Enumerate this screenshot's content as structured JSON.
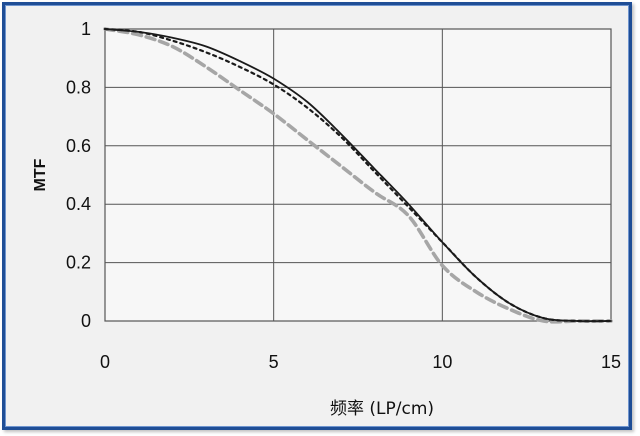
{
  "chart_data": {
    "type": "line",
    "title": "",
    "xlabel": "频率 (LP/cm)",
    "ylabel": "MTF",
    "xlim": [
      0,
      15
    ],
    "ylim": [
      0,
      1
    ],
    "x_ticks": [
      "0",
      "5",
      "10",
      "15"
    ],
    "y_ticks": [
      "0",
      "0.2",
      "0.4",
      "0.6",
      "0.8",
      "1"
    ],
    "grid": true,
    "legend": "none",
    "series": [
      {
        "style": "solid",
        "color": "#1a1a1a",
        "x": [
          0,
          1,
          2,
          3,
          4,
          5,
          6,
          7,
          8,
          9,
          10,
          11,
          12,
          13,
          14,
          15
        ],
        "y": [
          1.0,
          0.99,
          0.97,
          0.94,
          0.89,
          0.83,
          0.75,
          0.64,
          0.52,
          0.4,
          0.27,
          0.15,
          0.06,
          0.01,
          0.0,
          0.0
        ]
      },
      {
        "style": "dotted",
        "color": "#1a1a1a",
        "x": [
          0,
          1,
          2,
          3,
          4,
          5,
          6,
          7,
          8,
          9,
          10,
          11,
          12,
          13,
          14,
          15
        ],
        "y": [
          1.0,
          0.99,
          0.96,
          0.92,
          0.87,
          0.81,
          0.73,
          0.63,
          0.51,
          0.39,
          0.27,
          0.15,
          0.06,
          0.01,
          0.0,
          0.0
        ]
      },
      {
        "style": "dashed",
        "color": "#a6a6a6",
        "x": [
          0,
          1,
          2,
          3,
          4,
          5,
          6,
          7,
          8,
          9,
          10,
          11,
          12,
          13,
          14,
          15
        ],
        "y": [
          1.0,
          0.98,
          0.94,
          0.87,
          0.79,
          0.71,
          0.62,
          0.53,
          0.44,
          0.36,
          0.19,
          0.1,
          0.04,
          0.0,
          0.0,
          0.0
        ]
      }
    ]
  }
}
